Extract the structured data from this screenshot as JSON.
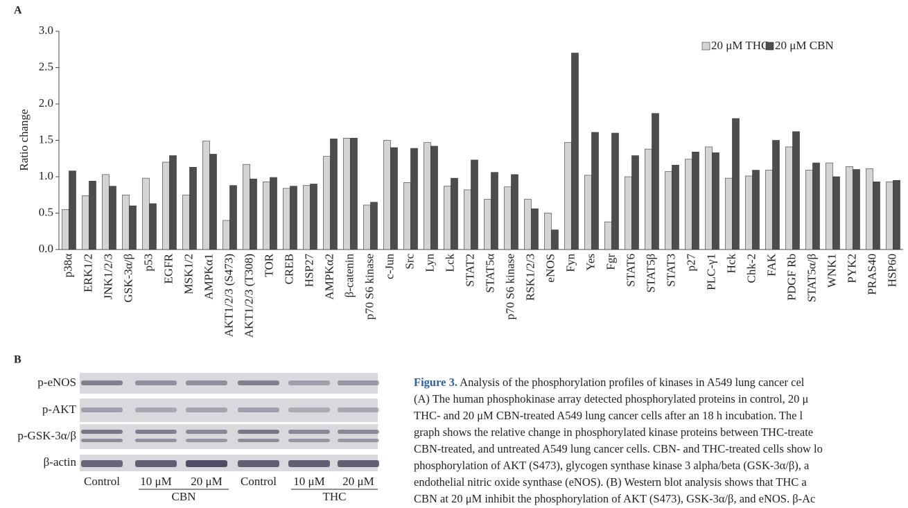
{
  "panel_a_label": "A",
  "chart_data": {
    "type": "bar",
    "y_label": "Ratio change",
    "categories": [
      "p38α",
      "ERK1/2",
      "JNK1/2/3",
      "GSK-3α/β",
      "p53",
      "EGFR",
      "MSK1/2",
      "AMPKα1",
      "AKT1/2/3 (S473)",
      "AKT1/2/3 (T308)",
      "TOR",
      "CREB",
      "HSP27",
      "AMPKα2",
      "β-catenin",
      "p70 S6 kinase",
      "c-Jun",
      "Src",
      "Lyn",
      "Lck",
      "STAT2",
      "STAT5α",
      "p70 S6 kinase",
      "RSK1/2/3",
      "eNOS",
      "Fyn",
      "Yes",
      "Fgr",
      "STAT6",
      "STAT5β",
      "STAT3",
      "p27",
      "PLC-γ1",
      "Hck",
      "Chk-2",
      "FAK",
      "PDGF Rb",
      "STAT5α/β",
      "WNK1",
      "PYK2",
      "PRAS40",
      "HSP60"
    ],
    "series": [
      {
        "name": "20 μM THC",
        "color": "#d4d4d4",
        "values": [
          0.55,
          0.74,
          1.03,
          0.75,
          0.98,
          1.2,
          0.75,
          1.49,
          0.4,
          1.17,
          0.93,
          0.84,
          0.88,
          1.28,
          1.53,
          0.61,
          1.5,
          0.92,
          1.47,
          0.87,
          0.82,
          0.69,
          0.86,
          0.69,
          0.5,
          1.47,
          1.02,
          0.38,
          1.0,
          1.38,
          1.07,
          1.24,
          1.41,
          0.98,
          1.01,
          1.09,
          1.41,
          1.09,
          1.19,
          1.14,
          1.11,
          0.93
        ]
      },
      {
        "name": "20 μM CBN",
        "color": "#4d4d4d",
        "values": [
          1.08,
          0.94,
          0.87,
          0.6,
          0.63,
          1.29,
          1.13,
          1.31,
          0.88,
          0.97,
          0.99,
          0.87,
          0.9,
          1.52,
          1.53,
          0.65,
          1.4,
          1.39,
          1.42,
          0.98,
          1.23,
          1.06,
          1.03,
          0.56,
          0.27,
          2.7,
          1.61,
          1.6,
          1.29,
          1.87,
          1.16,
          1.34,
          1.33,
          1.8,
          1.09,
          1.5,
          1.62,
          1.19,
          1.0,
          1.1,
          0.93,
          0.95
        ]
      }
    ],
    "ylim": [
      0,
      3
    ],
    "yticks": [
      {
        "value": 0,
        "label": "0.0"
      },
      0.5,
      {
        "value": 1,
        "label": "1.0"
      },
      1.5,
      {
        "value": 2,
        "label": "2.0"
      },
      2.5,
      {
        "value": 3,
        "label": "3.0"
      }
    ],
    "grid": false,
    "legend": "top-right"
  },
  "panel_b": {
    "label": "B",
    "rows": [
      "p-eNOS",
      "p-AKT",
      "p-GSK-3α/β",
      "β-actin"
    ],
    "lanes": [
      "Control",
      "10 μM",
      "20 μM",
      "Control",
      "10 μM",
      "20 μM"
    ],
    "groups": [
      "CBN",
      "THC"
    ]
  },
  "caption": {
    "label": "Figure 3.",
    "lines": [
      " Analysis of the phosphorylation profiles of kinases in A549 lung cancer cel",
      "(A) The human phosphokinase array detected phosphorylated proteins in control, 20 μ",
      "THC- and 20 μM CBN-treated A549 lung cancer cells after an 18 h incubation. The l",
      "graph shows the relative change in phosphorylated kinase proteins between THC-treate",
      "CBN-treated, and untreated A549 lung cancer cells. CBN- and THC-treated cells show lo",
      "phosphorylation of AKT (S473), glycogen synthase kinase 3 alpha/beta (GSK-3α/β), a",
      "endothelial nitric oxide synthase (eNOS). (B) Western blot analysis shows that THC a",
      "CBN at 20 μM inhibit the phosphorylation of AKT (S473), GSK-3α/β, and eNOS. β-Ac"
    ]
  }
}
